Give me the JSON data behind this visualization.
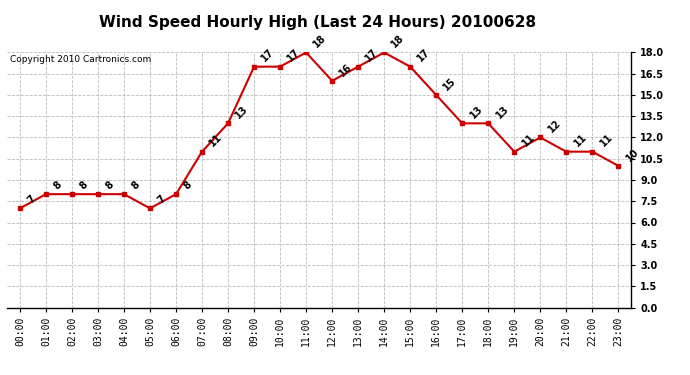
{
  "title": "Wind Speed Hourly High (Last 24 Hours) 20100628",
  "copyright": "Copyright 2010 Cartronics.com",
  "hours": [
    "00:00",
    "01:00",
    "02:00",
    "03:00",
    "04:00",
    "05:00",
    "06:00",
    "07:00",
    "08:00",
    "09:00",
    "10:00",
    "11:00",
    "12:00",
    "13:00",
    "14:00",
    "15:00",
    "16:00",
    "17:00",
    "18:00",
    "19:00",
    "20:00",
    "21:00",
    "22:00",
    "23:00"
  ],
  "values": [
    7,
    8,
    8,
    8,
    8,
    7,
    8,
    11,
    13,
    17,
    17,
    18,
    16,
    17,
    18,
    17,
    15,
    13,
    13,
    11,
    12,
    11,
    11,
    10
  ],
  "line_color": "#cc0000",
  "marker_color": "#cc0000",
  "bg_color": "#ffffff",
  "grid_color": "#bbbbbb",
  "ylim": [
    0.0,
    18.0
  ],
  "yticks": [
    0.0,
    1.5,
    3.0,
    4.5,
    6.0,
    7.5,
    9.0,
    10.5,
    12.0,
    13.5,
    15.0,
    16.5,
    18.0
  ],
  "title_fontsize": 11,
  "label_fontsize": 7,
  "annotation_fontsize": 7,
  "copyright_fontsize": 6.5
}
